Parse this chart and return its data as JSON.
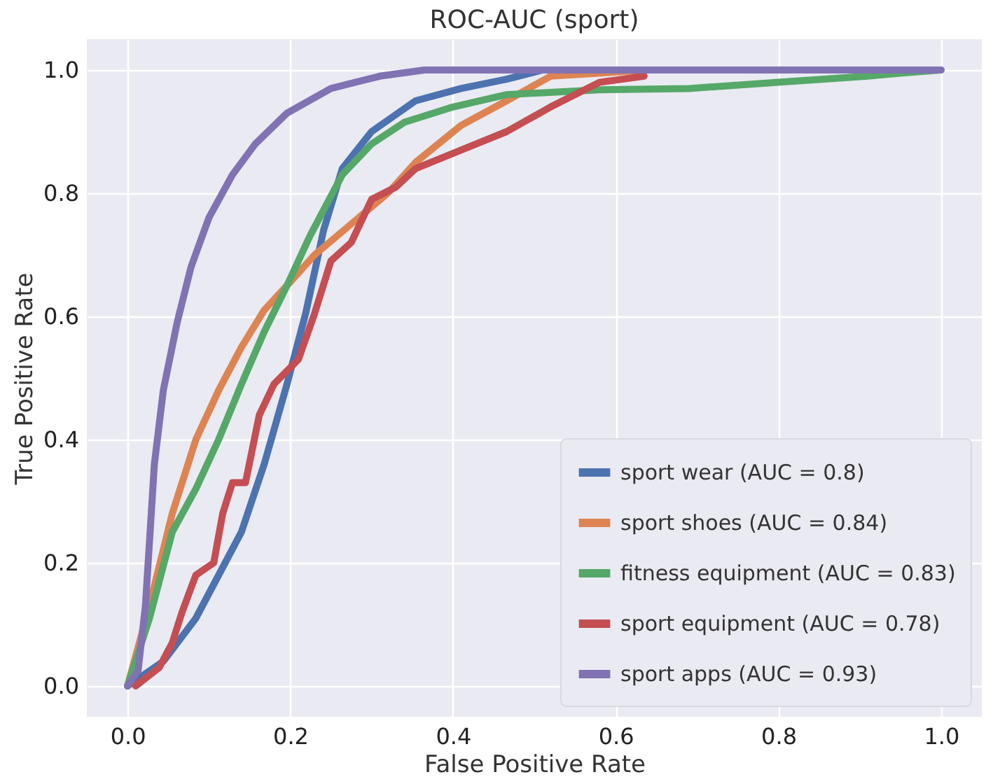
{
  "chart_data": {
    "type": "line",
    "title": "ROC-AUC (sport)",
    "xlabel": "False Positive Rate",
    "ylabel": "True Positive Rate",
    "xlim": [
      -0.05,
      1.05
    ],
    "ylim": [
      -0.05,
      1.05
    ],
    "xticks": [
      {
        "value": 0,
        "label": "0.0"
      },
      {
        "value": 0.2,
        "label": "0.2"
      },
      {
        "value": 0.4,
        "label": "0.4"
      },
      {
        "value": 0.6,
        "label": "0.6"
      },
      {
        "value": 0.8,
        "label": "0.8"
      },
      {
        "value": 1,
        "label": "1.0"
      }
    ],
    "yticks": [
      {
        "value": 0,
        "label": "0.0"
      },
      {
        "value": 0.2,
        "label": "0.2"
      },
      {
        "value": 0.4,
        "label": "0.4"
      },
      {
        "value": 0.6,
        "label": "0.6"
      },
      {
        "value": 0.8,
        "label": "0.8"
      },
      {
        "value": 1,
        "label": "1.0"
      }
    ],
    "grid": true,
    "legend": "bottom right",
    "marker": "none",
    "series": [
      {
        "name": "sport wear (AUC = 0.8)",
        "color": "#4c72b0",
        "x": [
          0,
          0.044,
          0.084,
          0.112,
          0.14,
          0.168,
          0.196,
          0.219,
          0.241,
          0.264,
          0.3,
          0.354,
          0.41,
          0.466,
          0.51
        ],
        "values": [
          0,
          0.04,
          0.11,
          0.18,
          0.25,
          0.36,
          0.49,
          0.605,
          0.74,
          0.84,
          0.9,
          0.95,
          0.97,
          0.985,
          1
        ]
      },
      {
        "name": "sport shoes (AUC = 0.84)",
        "color": "#dd8452",
        "x": [
          0,
          0.027,
          0.055,
          0.084,
          0.112,
          0.14,
          0.168,
          0.196,
          0.23,
          0.275,
          0.32,
          0.354,
          0.41,
          0.466,
          0.52,
          0.58,
          0.635
        ],
        "values": [
          0,
          0.13,
          0.28,
          0.4,
          0.48,
          0.55,
          0.61,
          0.65,
          0.7,
          0.75,
          0.8,
          0.85,
          0.91,
          0.95,
          0.99,
          0.995,
          1
        ]
      },
      {
        "name": "fitness equipment (AUC = 0.83)",
        "color": "#55a868",
        "x": [
          0,
          0.027,
          0.055,
          0.084,
          0.112,
          0.14,
          0.168,
          0.196,
          0.224,
          0.24,
          0.264,
          0.3,
          0.34,
          0.4,
          0.466,
          0.58,
          0.69,
          0.8,
          0.91,
          0.95,
          1
        ],
        "values": [
          0,
          0.11,
          0.25,
          0.32,
          0.4,
          0.49,
          0.575,
          0.65,
          0.73,
          0.77,
          0.83,
          0.88,
          0.915,
          0.94,
          0.96,
          0.968,
          0.97,
          0.98,
          0.99,
          0.995,
          1
        ]
      },
      {
        "name": "sport equipment (AUC = 0.78)",
        "color": "#c44e52",
        "x": [
          0.01,
          0.039,
          0.055,
          0.067,
          0.084,
          0.106,
          0.117,
          0.129,
          0.145,
          0.162,
          0.18,
          0.21,
          0.23,
          0.25,
          0.275,
          0.3,
          0.33,
          0.354,
          0.41,
          0.466,
          0.52,
          0.58,
          0.635
        ],
        "values": [
          0,
          0.03,
          0.07,
          0.12,
          0.18,
          0.2,
          0.28,
          0.33,
          0.33,
          0.44,
          0.49,
          0.53,
          0.605,
          0.69,
          0.72,
          0.79,
          0.81,
          0.84,
          0.87,
          0.9,
          0.94,
          0.98,
          0.99
        ]
      },
      {
        "name": "sport apps (AUC = 0.93)",
        "color": "#8172b3",
        "x": [
          0,
          0.013,
          0.022,
          0.033,
          0.044,
          0.061,
          0.078,
          0.1,
          0.129,
          0.157,
          0.196,
          0.25,
          0.31,
          0.365,
          1
        ],
        "values": [
          0,
          0.025,
          0.13,
          0.36,
          0.48,
          0.59,
          0.68,
          0.76,
          0.83,
          0.88,
          0.93,
          0.97,
          0.99,
          1,
          1
        ]
      }
    ]
  }
}
